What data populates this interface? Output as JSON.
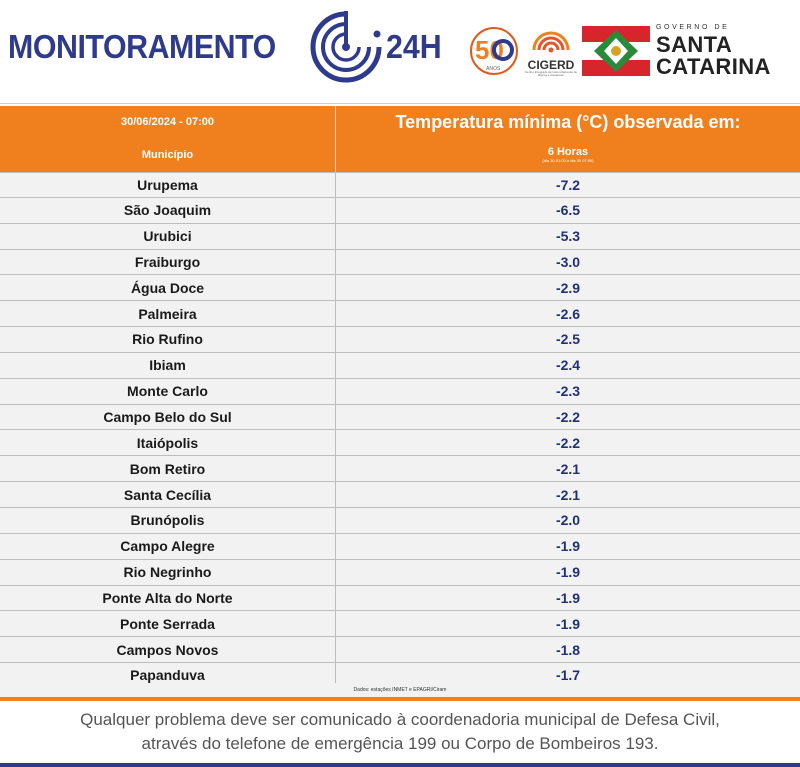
{
  "header": {
    "brand_text": "MONITORAMENTO",
    "brand_suffix": "24H",
    "logo50_text": "50",
    "logo50_sub": "ANOS",
    "cigerd_label": "CIGERD",
    "cigerd_sub": "Centro Integrado de Gerenciamento de Riscos e Desastres",
    "gov_small": "GOVERNO DE",
    "gov_line1": "SANTA",
    "gov_line2": "CATARINA",
    "brand_color": "#2e3a8c",
    "accent_color": "#f0801e"
  },
  "table": {
    "datetime": "30/06/2024 - 07:00",
    "title": "Temperatura mínima (°C) observada em:",
    "municipio_label": "Município",
    "hours_label": "6 Horas",
    "hours_sub": "(dia 30 01:00 a dia 30 07:00)",
    "rows": [
      {
        "name": "Urupema",
        "value": "-7.2"
      },
      {
        "name": "São Joaquim",
        "value": "-6.5"
      },
      {
        "name": "Urubici",
        "value": "-5.3"
      },
      {
        "name": "Fraiburgo",
        "value": "-3.0"
      },
      {
        "name": "Água Doce",
        "value": "-2.9"
      },
      {
        "name": "Palmeira",
        "value": "-2.6"
      },
      {
        "name": "Rio Rufino",
        "value": "-2.5"
      },
      {
        "name": "Ibiam",
        "value": "-2.4"
      },
      {
        "name": "Monte Carlo",
        "value": "-2.3"
      },
      {
        "name": "Campo Belo do Sul",
        "value": "-2.2"
      },
      {
        "name": "Itaiópolis",
        "value": "-2.2"
      },
      {
        "name": "Bom Retiro",
        "value": "-2.1"
      },
      {
        "name": "Santa Cecília",
        "value": "-2.1"
      },
      {
        "name": "Brunópolis",
        "value": "-2.0"
      },
      {
        "name": "Campo Alegre",
        "value": "-1.9"
      },
      {
        "name": "Rio Negrinho",
        "value": "-1.9"
      },
      {
        "name": "Ponte Alta do Norte",
        "value": "-1.9"
      },
      {
        "name": "Ponte Serrada",
        "value": "-1.9"
      },
      {
        "name": "Campos Novos",
        "value": "-1.8"
      },
      {
        "name": "Papanduva",
        "value": "-1.7"
      }
    ],
    "source": "Dados: estações INMET e EPAGRI/Ciram"
  },
  "footer": {
    "line1": "Qualquer problema deve ser comunicado à coordenadoria municipal de Defesa Civil,",
    "line2": "através do telefone de emergência 199 ou Corpo de Bombeiros 193."
  }
}
